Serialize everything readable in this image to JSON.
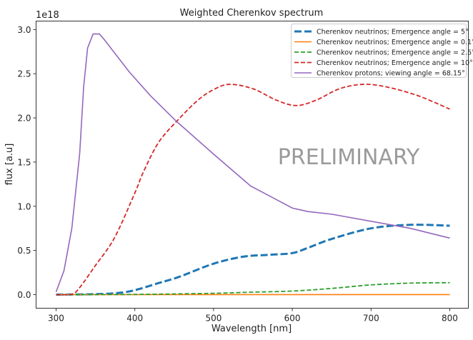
{
  "chart_data": {
    "type": "line",
    "title": "Weighted Cherenkov spectrum",
    "xlabel": "Wavelength [nm]",
    "ylabel": "flux [a.u]",
    "y_offset_label": "1e18",
    "xlim": [
      274.6,
      823.6
    ],
    "ylim": [
      -0.154,
      3.096
    ],
    "xticks": [
      300,
      400,
      500,
      600,
      700,
      800
    ],
    "yticks": [
      0.0,
      0.5,
      1.0,
      1.5,
      2.0,
      2.5,
      3.0
    ],
    "ytick_labels": [
      "0.0",
      "0.5",
      "1.0",
      "1.5",
      "2.0",
      "2.5",
      "3.0"
    ],
    "grid": false,
    "legend_position": "top-right",
    "annotation": "PRELIMINARY",
    "series": [
      {
        "name": "Cherenkov neutrinos; Emergence angle = 5°",
        "color": "#1f77b4",
        "style": "dashed-thick",
        "smooth": true,
        "x": [
          300,
          350,
          380,
          400,
          430,
          456,
          500,
          538,
          570,
          600,
          620,
          650,
          700,
          750,
          800
        ],
        "y": [
          0,
          0.005,
          0.02,
          0.05,
          0.13,
          0.2,
          0.35,
          0.43,
          0.45,
          0.47,
          0.53,
          0.63,
          0.75,
          0.79,
          0.78
        ]
      },
      {
        "name": "Cherenkov neutrinos; Emergence angle = 0.1°",
        "color": "#ff7f0e",
        "style": "solid",
        "smooth": true,
        "x": [
          300,
          400,
          500,
          600,
          700,
          800
        ],
        "y": [
          0,
          0,
          0,
          0,
          0,
          0
        ]
      },
      {
        "name": "Cherenkov neutrinos; Emergence angle = 2.5°",
        "color": "#2ca02c",
        "style": "dashed",
        "smooth": true,
        "x": [
          300,
          400,
          500,
          550,
          600,
          650,
          700,
          750,
          800
        ],
        "y": [
          0,
          0.002,
          0.015,
          0.028,
          0.04,
          0.07,
          0.11,
          0.13,
          0.135
        ]
      },
      {
        "name": "Cherenkov neutrinos; Emergence angle = 10°",
        "color": "#d62728",
        "style": "dashed",
        "smooth": true,
        "x": [
          300,
          320,
          330,
          350,
          374,
          400,
          411,
          430,
          453,
          480,
          500,
          520,
          550,
          580,
          605,
          630,
          660,
          690,
          720,
          760,
          800
        ],
        "y": [
          0,
          0.005,
          0.08,
          0.33,
          0.64,
          1.15,
          1.39,
          1.72,
          1.96,
          2.2,
          2.32,
          2.38,
          2.33,
          2.2,
          2.14,
          2.2,
          2.33,
          2.38,
          2.35,
          2.25,
          2.1
        ]
      },
      {
        "name": "Cherenkov protons; viewing angle =  68.15°",
        "color": "#9467bd",
        "style": "solid",
        "smooth": false,
        "x": [
          300,
          310,
          320,
          330,
          335,
          340,
          347,
          355,
          360,
          393,
          420,
          453,
          500,
          547,
          600,
          620,
          650,
          700,
          750,
          800
        ],
        "y": [
          0.03,
          0.27,
          0.75,
          1.6,
          2.35,
          2.79,
          2.95,
          2.95,
          2.9,
          2.52,
          2.25,
          1.96,
          1.59,
          1.23,
          0.98,
          0.94,
          0.91,
          0.83,
          0.75,
          0.64
        ]
      }
    ]
  }
}
